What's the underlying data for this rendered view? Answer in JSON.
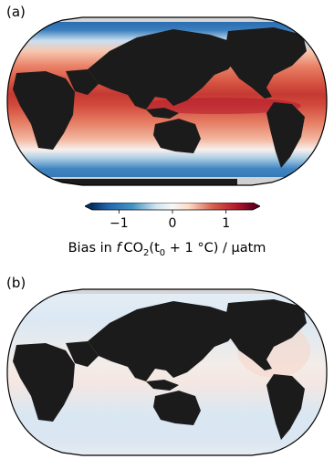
{
  "panels": [
    {
      "label": "(a)",
      "field": "strong-bias"
    },
    {
      "label": "(b)",
      "field": "weak-bias"
    }
  ],
  "colorbar": {
    "ticks": [
      {
        "value": -1,
        "label": "−1"
      },
      {
        "value": 0,
        "label": "0"
      },
      {
        "value": 1,
        "label": "1"
      }
    ],
    "range": [
      -1.5,
      1.5
    ],
    "extend": "both",
    "colormap": "RdBu_r",
    "title_prefix": "Bias in ",
    "title_f": "f",
    "title_var": "CO",
    "title_var_sub": "2",
    "title_open": "(t",
    "title_t_sub": "0",
    "title_rest": " + 1 °C) / µatm"
  },
  "colors": {
    "land": "#1b1b1b",
    "ice": "#cfcfcf",
    "strong_red": "#b2182b",
    "strong_blue": "#2166ac",
    "neutral": "#f7f7f7"
  }
}
